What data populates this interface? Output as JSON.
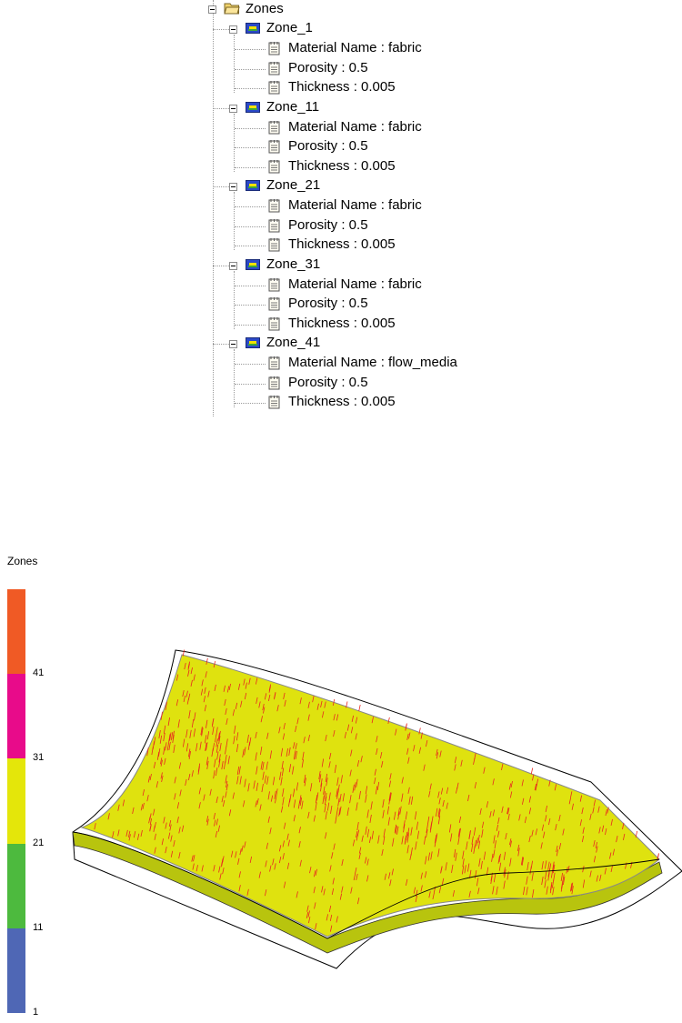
{
  "tree": {
    "root_label": "Zones",
    "zones": [
      {
        "name": "Zone_1",
        "props": [
          "Material Name : fabric",
          "Porosity : 0.5",
          "Thickness : 0.005"
        ]
      },
      {
        "name": "Zone_11",
        "props": [
          "Material Name : fabric",
          "Porosity : 0.5",
          "Thickness : 0.005"
        ]
      },
      {
        "name": "Zone_21",
        "props": [
          "Material Name : fabric",
          "Porosity : 0.5",
          "Thickness : 0.005"
        ]
      },
      {
        "name": "Zone_31",
        "props": [
          "Material Name : fabric",
          "Porosity : 0.5",
          "Thickness : 0.005"
        ]
      },
      {
        "name": "Zone_41",
        "props": [
          "Material Name : flow_media",
          "Porosity : 0.5",
          "Thickness : 0.005"
        ]
      }
    ]
  },
  "legend": {
    "title": "Zones",
    "ticks": [
      "1",
      "11",
      "21",
      "31",
      "41"
    ],
    "colors": [
      "#4f67b5",
      "#4dba3e",
      "#e4e60a",
      "#e80b8a",
      "#f05a25"
    ]
  },
  "view": {
    "surface_color": "#dfe20f",
    "arrow_color": "#e8281f"
  }
}
